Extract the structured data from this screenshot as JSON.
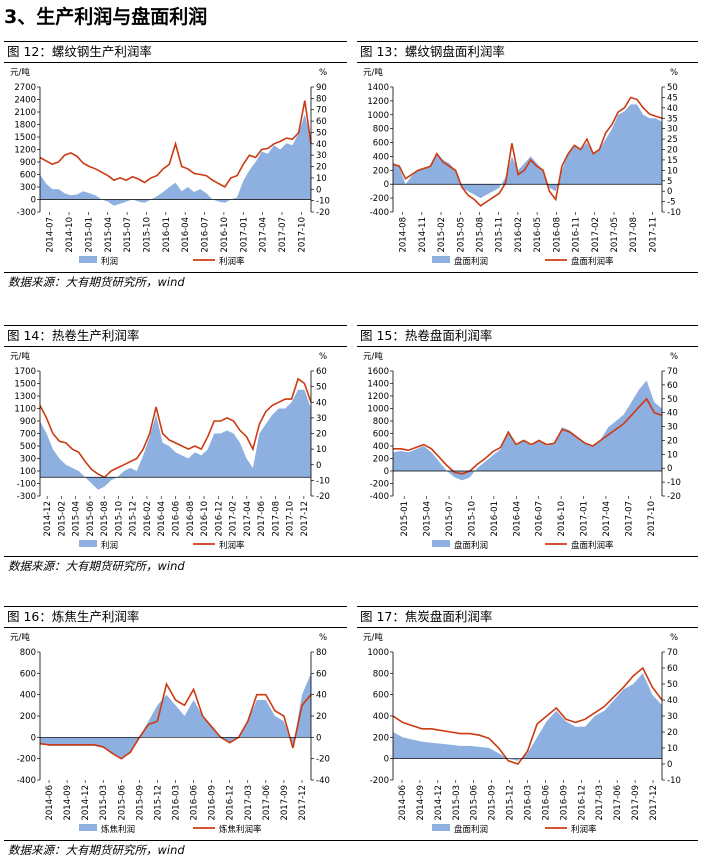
{
  "section_title": "3、生产利润与盘面利润",
  "source_text": "数据来源：大有期货研究所，wind",
  "colors": {
    "area": "#8eb0e0",
    "line": "#cc3a12"
  },
  "chart_data": [
    {
      "id": "fig12",
      "panel_title": "图 12：螺纹钢生产利润率",
      "type": "area+line",
      "left_unit": "元/吨",
      "right_unit": "%",
      "left_ticks": [
        "2700",
        "2400",
        "2100",
        "1800",
        "1500",
        "1200",
        "900",
        "600",
        "300",
        "0",
        "-300"
      ],
      "right_ticks": [
        "90",
        "80",
        "70",
        "60",
        "50",
        "40",
        "30",
        "20",
        "10",
        "0",
        "-10",
        "-20"
      ],
      "ylim": [
        -300,
        2700
      ],
      "y2lim": [
        -20,
        90
      ],
      "x_labels": [
        "2014-07",
        "2014-10",
        "2015-01",
        "2015-04",
        "2015-07",
        "2015-10",
        "2016-01",
        "2016-04",
        "2016-07",
        "2016-10",
        "2017-01",
        "2017-04",
        "2017-07",
        "2017-10"
      ],
      "series": [
        {
          "name": "利润",
          "axis": "left",
          "kind": "area",
          "values": [
            600,
            380,
            250,
            250,
            150,
            100,
            120,
            200,
            150,
            100,
            0,
            -50,
            -150,
            -100,
            -50,
            0,
            -50,
            -80,
            0,
            80,
            180,
            300,
            400,
            200,
            300,
            180,
            250,
            150,
            0,
            -50,
            -80,
            0,
            50,
            450,
            700,
            900,
            1150,
            1100,
            1300,
            1200,
            1350,
            1300,
            1600,
            2050,
            1400
          ]
        },
        {
          "name": "利润率",
          "axis": "right",
          "kind": "line",
          "values": [
            28,
            25,
            22,
            24,
            30,
            32,
            29,
            23,
            20,
            18,
            15,
            12,
            8,
            10,
            8,
            11,
            9,
            6,
            10,
            12,
            18,
            22,
            40,
            20,
            18,
            14,
            13,
            12,
            8,
            5,
            2,
            10,
            12,
            22,
            30,
            28,
            35,
            36,
            40,
            42,
            45,
            44,
            50,
            78,
            40
          ]
        }
      ]
    },
    {
      "id": "fig13",
      "panel_title": "图 13：螺纹钢盘面利润率",
      "type": "area+line",
      "left_unit": "元/吨",
      "right_unit": "%",
      "left_ticks": [
        "1400",
        "1200",
        "1000",
        "800",
        "600",
        "400",
        "200",
        "0",
        "-200",
        "-400"
      ],
      "right_ticks": [
        "50",
        "45",
        "40",
        "35",
        "30",
        "25",
        "20",
        "15",
        "10",
        "5",
        "0",
        "-5",
        "-10"
      ],
      "ylim": [
        -400,
        1400
      ],
      "y2lim": [
        -10,
        50
      ],
      "x_labels": [
        "2014-08",
        "2014-11",
        "2015-02",
        "2015-05",
        "2015-08",
        "2015-11",
        "2016-02",
        "2016-05",
        "2016-08",
        "2016-11",
        "2017-02",
        "2017-05",
        "2017-08",
        "2017-11"
      ],
      "series": [
        {
          "name": "盘面利润",
          "axis": "left",
          "kind": "area",
          "values": [
            300,
            250,
            0,
            120,
            200,
            220,
            250,
            450,
            350,
            300,
            200,
            -50,
            -100,
            -150,
            -200,
            -150,
            -100,
            -50,
            100,
            400,
            200,
            300,
            400,
            300,
            200,
            -50,
            -100,
            200,
            450,
            550,
            500,
            600,
            450,
            500,
            650,
            800,
            1000,
            1050,
            1150,
            1150,
            1000,
            950,
            950,
            900
          ]
        },
        {
          "name": "盘面利润率",
          "axis": "right",
          "kind": "line",
          "values": [
            13,
            12,
            6,
            8,
            10,
            11,
            12,
            18,
            14,
            12,
            10,
            2,
            -2,
            -4,
            -7,
            -5,
            -3,
            -1,
            4,
            23,
            8,
            10,
            15,
            12,
            10,
            0,
            -4,
            12,
            18,
            22,
            20,
            25,
            18,
            20,
            28,
            32,
            38,
            40,
            45,
            44,
            40,
            37,
            36,
            35
          ]
        }
      ]
    },
    {
      "id": "fig14",
      "panel_title": "图 14：热卷生产利润率",
      "type": "area+line",
      "left_unit": "元/吨",
      "right_unit": "%",
      "left_ticks": [
        "1700",
        "1500",
        "1300",
        "1100",
        "900",
        "700",
        "500",
        "300",
        "100",
        "-100",
        "-300"
      ],
      "right_ticks": [
        "60",
        "50",
        "40",
        "30",
        "20",
        "10",
        "0",
        "-10",
        "-20"
      ],
      "ylim": [
        -300,
        1700
      ],
      "y2lim": [
        -20,
        60
      ],
      "x_labels": [
        "2014-12",
        "2015-02",
        "2015-04",
        "2015-06",
        "2015-08",
        "2015-10",
        "2015-12",
        "2016-02",
        "2016-04",
        "2016-06",
        "2016-08",
        "2016-10",
        "2016-12",
        "2017-02",
        "2017-04",
        "2017-06",
        "2017-08",
        "2017-10",
        "2017-12"
      ],
      "series": [
        {
          "name": "利润",
          "axis": "left",
          "kind": "area",
          "values": [
            900,
            700,
            450,
            300,
            200,
            150,
            100,
            0,
            -100,
            -200,
            -150,
            -50,
            0,
            100,
            150,
            100,
            350,
            650,
            1000,
            550,
            500,
            400,
            350,
            300,
            400,
            350,
            450,
            700,
            700,
            750,
            700,
            550,
            300,
            150,
            700,
            850,
            1000,
            1100,
            1100,
            1200,
            1400,
            1400,
            1100
          ]
        },
        {
          "name": "利润率",
          "axis": "right",
          "kind": "line",
          "values": [
            38,
            30,
            20,
            15,
            14,
            10,
            8,
            2,
            -3,
            -6,
            -8,
            -4,
            -2,
            0,
            2,
            4,
            10,
            20,
            37,
            20,
            16,
            14,
            12,
            10,
            12,
            10,
            18,
            28,
            28,
            30,
            28,
            22,
            18,
            10,
            26,
            34,
            38,
            40,
            42,
            42,
            55,
            52,
            40
          ]
        }
      ]
    },
    {
      "id": "fig15",
      "panel_title": "图 15：热卷盘面利润率",
      "type": "area+line",
      "left_unit": "元/吨",
      "right_unit": "%",
      "left_ticks": [
        "1600",
        "1400",
        "1200",
        "1000",
        "800",
        "600",
        "400",
        "200",
        "0",
        "-200",
        "-400"
      ],
      "right_ticks": [
        "70",
        "60",
        "50",
        "40",
        "30",
        "20",
        "10",
        "0",
        "-10",
        "-20"
      ],
      "ylim": [
        -400,
        1600
      ],
      "y2lim": [
        -20,
        70
      ],
      "x_labels": [
        "2015-01",
        "2015-04",
        "2015-07",
        "2015-10",
        "2016-01",
        "2016-04",
        "2016-07",
        "2016-10",
        "2017-01",
        "2017-04",
        "2017-07",
        "2017-10"
      ],
      "series": [
        {
          "name": "盘面利润",
          "axis": "left",
          "kind": "area",
          "values": [
            300,
            320,
            300,
            350,
            400,
            300,
            150,
            0,
            -100,
            -150,
            -100,
            50,
            150,
            250,
            350,
            650,
            400,
            500,
            400,
            500,
            400,
            450,
            700,
            650,
            550,
            450,
            400,
            500,
            700,
            800,
            900,
            1100,
            1300,
            1450,
            1100,
            1000
          ]
        },
        {
          "name": "盘面利润率",
          "axis": "right",
          "kind": "line",
          "values": [
            14,
            14,
            13,
            15,
            17,
            14,
            8,
            2,
            -3,
            -4,
            -2,
            3,
            7,
            12,
            15,
            26,
            17,
            20,
            17,
            20,
            17,
            18,
            28,
            26,
            22,
            18,
            16,
            20,
            24,
            28,
            32,
            38,
            44,
            50,
            40,
            38
          ]
        }
      ]
    },
    {
      "id": "fig16",
      "panel_title": "图 16：炼焦生产利润率",
      "type": "area+line",
      "left_unit": "元/吨",
      "right_unit": "%",
      "left_ticks": [
        "800",
        "600",
        "400",
        "200",
        "0",
        "-200",
        "-400"
      ],
      "right_ticks": [
        "80",
        "60",
        "40",
        "20",
        "0",
        "-20",
        "-40"
      ],
      "ylim": [
        -400,
        800
      ],
      "y2lim": [
        -40,
        80
      ],
      "x_labels": [
        "2014-06",
        "2014-09",
        "2014-12",
        "2015-03",
        "2015-06",
        "2015-09",
        "2015-12",
        "2016-03",
        "2016-06",
        "2016-09",
        "2016-12",
        "2017-03",
        "2017-06",
        "2017-09",
        "2017-12"
      ],
      "series": [
        {
          "name": "炼焦利润",
          "axis": "left",
          "kind": "area",
          "values": [
            -50,
            -80,
            -80,
            -80,
            -80,
            -80,
            -80,
            -100,
            -150,
            -200,
            -150,
            0,
            150,
            300,
            400,
            300,
            200,
            350,
            200,
            100,
            0,
            -50,
            0,
            150,
            350,
            350,
            200,
            150,
            -100,
            400,
            600
          ]
        },
        {
          "name": "炼焦利润率",
          "axis": "right",
          "kind": "line",
          "values": [
            -6,
            -7,
            -7,
            -7,
            -7,
            -7,
            -7,
            -9,
            -15,
            -20,
            -14,
            0,
            12,
            15,
            50,
            35,
            30,
            45,
            20,
            10,
            0,
            -5,
            0,
            15,
            40,
            40,
            25,
            20,
            -10,
            30,
            40
          ]
        }
      ]
    },
    {
      "id": "fig17",
      "panel_title": "图 17：焦炭盘面利润率",
      "type": "area+line",
      "left_unit": "元/吨",
      "right_unit": "%",
      "left_ticks": [
        "1000",
        "800",
        "600",
        "400",
        "200",
        "0",
        "-200"
      ],
      "right_ticks": [
        "70",
        "60",
        "50",
        "40",
        "30",
        "20",
        "10",
        "0",
        "-10"
      ],
      "ylim": [
        -200,
        1000
      ],
      "y2lim": [
        -10,
        70
      ],
      "x_labels": [
        "2014-06",
        "2014-09",
        "2014-12",
        "2015-03",
        "2015-06",
        "2015-09",
        "2015-12",
        "2016-03",
        "2016-06",
        "2016-09",
        "2016-12",
        "2017-03",
        "2017-06",
        "2017-09",
        "2017-12"
      ],
      "series": [
        {
          "name": "盘面利润",
          "axis": "left",
          "kind": "area",
          "values": [
            250,
            200,
            180,
            160,
            150,
            140,
            130,
            120,
            120,
            110,
            100,
            50,
            0,
            -20,
            50,
            200,
            350,
            450,
            350,
            300,
            300,
            400,
            450,
            550,
            650,
            700,
            800,
            600,
            500
          ]
        },
        {
          "name": "利润率",
          "axis": "right",
          "kind": "line",
          "values": [
            30,
            26,
            24,
            22,
            22,
            21,
            20,
            19,
            19,
            18,
            16,
            10,
            2,
            0,
            8,
            25,
            30,
            35,
            28,
            26,
            28,
            32,
            36,
            42,
            48,
            55,
            60,
            48,
            40
          ]
        }
      ]
    }
  ]
}
